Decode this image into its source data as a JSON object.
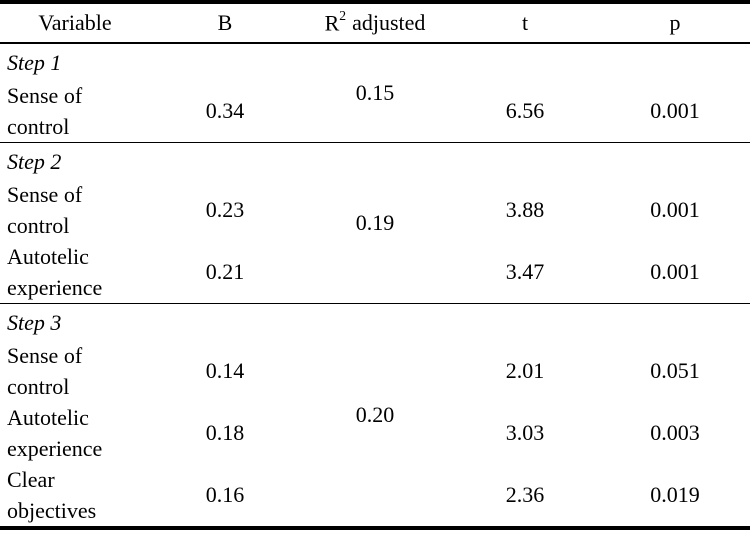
{
  "table": {
    "header": {
      "variable": "Variable",
      "b": "B",
      "r2_base": "R",
      "r2_sup": "2",
      "r2_rest": "adjusted",
      "t": "t",
      "p": "p"
    },
    "sections": [
      {
        "label": "Step 1",
        "r2_adjusted": "0.15",
        "rows": [
          {
            "variable": "Sense of control",
            "b": "0.34",
            "t": "6.56",
            "p": "0.001"
          }
        ]
      },
      {
        "label": "Step 2",
        "r2_adjusted": "0.19",
        "rows": [
          {
            "variable": "Sense of control",
            "b": "0.23",
            "t": "3.88",
            "p": "0.001"
          },
          {
            "variable": "Autotelic experience",
            "b": "0.21",
            "t": "3.47",
            "p": "0.001"
          }
        ]
      },
      {
        "label": "Step 3",
        "r2_adjusted": "0.20",
        "rows": [
          {
            "variable": "Sense of control",
            "b": "0.14",
            "t": "2.01",
            "p": "0.051"
          },
          {
            "variable": "Autotelic experience",
            "b": "0.18",
            "t": "3.03",
            "p": "0.003"
          },
          {
            "variable": "Clear objectives",
            "b": "0.16",
            "t": "2.36",
            "p": "0.019"
          }
        ]
      }
    ],
    "colors": {
      "text": "#000000",
      "background": "#ffffff",
      "border": "#000000"
    }
  }
}
